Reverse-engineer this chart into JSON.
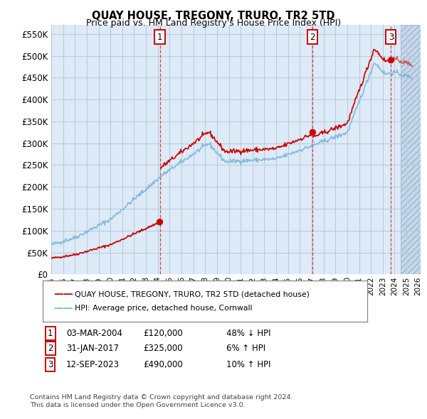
{
  "title": "QUAY HOUSE, TREGONY, TRURO, TR2 5TD",
  "subtitle": "Price paid vs. HM Land Registry's House Price Index (HPI)",
  "ylabel_ticks": [
    "£0",
    "£50K",
    "£100K",
    "£150K",
    "£200K",
    "£250K",
    "£300K",
    "£350K",
    "£400K",
    "£450K",
    "£500K",
    "£550K"
  ],
  "ylim": [
    0,
    570000
  ],
  "xlim_start": 1995.0,
  "xlim_end": 2026.2,
  "hatch_start": 2024.5,
  "legend_line1": "QUAY HOUSE, TREGONY, TRURO, TR2 5TD (detached house)",
  "legend_line2": "HPI: Average price, detached house, Cornwall",
  "transactions": [
    {
      "num": 1,
      "date": "03-MAR-2004",
      "price": "£120,000",
      "hpi": "48% ↓ HPI",
      "year": 2004.17,
      "price_val": 120000
    },
    {
      "num": 2,
      "date": "31-JAN-2017",
      "price": "£325,000",
      "hpi": "6% ↑ HPI",
      "year": 2017.08,
      "price_val": 325000
    },
    {
      "num": 3,
      "date": "12-SEP-2023",
      "price": "£490,000",
      "hpi": "10% ↑ HPI",
      "year": 2023.7,
      "price_val": 490000
    }
  ],
  "footer_line1": "Contains HM Land Registry data © Crown copyright and database right 2024.",
  "footer_line2": "This data is licensed under the Open Government Licence v3.0.",
  "hpi_color": "#7ab5d8",
  "price_color": "#cc0000",
  "background_color": "#ddeaf7",
  "grid_color": "#bbccdd",
  "transaction_line_color": "#cc0000",
  "label_box_color": "#cc0000",
  "hatch_bg_color": "#c8d8ea"
}
